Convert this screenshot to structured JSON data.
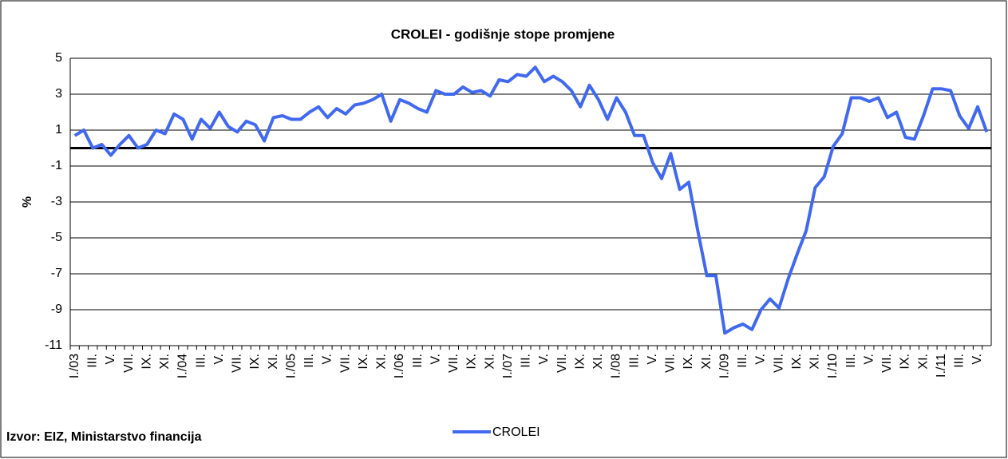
{
  "chart_data": {
    "type": "line",
    "title": "CROLEI - godišnje stope promjene",
    "y_label": "%",
    "source": "Izvor: EIZ, Ministarstvo financija",
    "categories": [
      "I./03",
      null,
      "III.",
      null,
      "V.",
      null,
      "VII.",
      null,
      "IX.",
      null,
      "XI.",
      null,
      "I./04",
      null,
      "III.",
      null,
      "V.",
      null,
      "VII.",
      null,
      "IX.",
      null,
      "XI.",
      null,
      "I./05",
      null,
      "III.",
      null,
      "V.",
      null,
      "VII.",
      null,
      "IX.",
      null,
      "XI.",
      null,
      "I./06",
      null,
      "III.",
      null,
      "V.",
      null,
      "VII.",
      null,
      "IX.",
      null,
      "XI.",
      null,
      "I./07",
      null,
      "III.",
      null,
      "V.",
      null,
      "VII.",
      null,
      "IX.",
      null,
      "XI.",
      null,
      "I./08",
      null,
      "III.",
      null,
      "V.",
      null,
      "VII.",
      null,
      "IX.",
      null,
      "XI.",
      null,
      "I./09",
      null,
      "III.",
      null,
      "V.",
      null,
      "VII.",
      null,
      "IX.",
      null,
      "XI.",
      null,
      "I./10",
      null,
      "III.",
      null,
      "V.",
      null,
      "VII.",
      null,
      "IX.",
      null,
      "XI.",
      null,
      "I./11",
      null,
      "III.",
      null,
      "V.",
      null
    ],
    "series": [
      {
        "name": "CROLEI",
        "color": "#4169f0",
        "values": [
          0.7,
          1.0,
          0.0,
          0.2,
          -0.4,
          0.2,
          0.7,
          0.0,
          0.2,
          1.0,
          0.8,
          1.9,
          1.6,
          0.5,
          1.6,
          1.1,
          2.0,
          1.2,
          0.9,
          1.5,
          1.3,
          0.4,
          1.7,
          1.8,
          1.6,
          1.6,
          2.0,
          2.3,
          1.7,
          2.2,
          1.9,
          2.4,
          2.5,
          2.7,
          3.0,
          1.5,
          2.7,
          2.5,
          2.2,
          2.0,
          3.2,
          3.0,
          3.0,
          3.4,
          3.1,
          3.2,
          2.9,
          3.8,
          3.7,
          4.1,
          4.0,
          4.5,
          3.7,
          4.0,
          3.7,
          3.2,
          2.3,
          3.5,
          2.7,
          1.6,
          2.8,
          2.0,
          0.7,
          0.7,
          -0.8,
          -1.7,
          -0.3,
          -2.3,
          -1.9,
          -4.6,
          -7.1,
          -7.1,
          -10.3,
          -10.0,
          -9.8,
          -10.1,
          -9.0,
          -8.4,
          -8.9,
          -7.3,
          -5.9,
          -4.6,
          -2.2,
          -1.6,
          0.1,
          0.8,
          2.8,
          2.8,
          2.6,
          2.8,
          1.7,
          2.0,
          0.6,
          0.5,
          1.8,
          3.3,
          3.3,
          3.2,
          1.8,
          1.1,
          2.3,
          0.9
        ]
      }
    ],
    "ylim": [
      -11,
      5
    ],
    "yticks": [
      5,
      3,
      1,
      -1,
      -3,
      -5,
      -7,
      -9,
      -11
    ],
    "grid": true,
    "legend": "bottom"
  }
}
